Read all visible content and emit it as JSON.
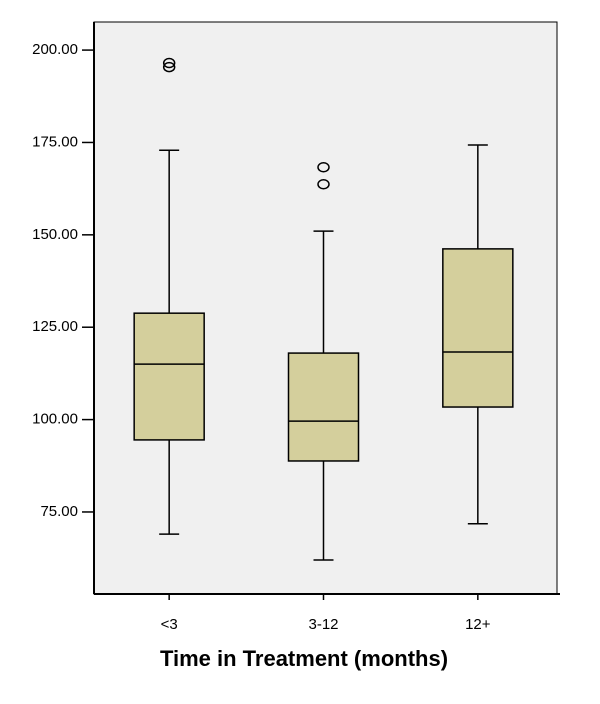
{
  "chart_data": {
    "type": "box",
    "x_label": "Time in Treatment (months)",
    "categories": [
      "<3",
      "3-12",
      "12+"
    ],
    "boxes": [
      {
        "min": 69.0,
        "q1": 94.5,
        "median": 115.0,
        "q3": 128.8,
        "max": 172.9,
        "outliers": [
          196.5,
          195.4
        ]
      },
      {
        "min": 62.0,
        "q1": 88.8,
        "median": 99.6,
        "q3": 118.0,
        "max": 151.0,
        "outliers": [
          168.3,
          163.7
        ]
      },
      {
        "min": 71.8,
        "q1": 103.4,
        "median": 118.3,
        "q3": 146.2,
        "max": 174.3,
        "outliers": []
      }
    ],
    "box_color": "#d4cf9c",
    "background": "#f0f0f0",
    "ylim": [
      52.8,
      207.6
    ],
    "yticks": [
      {
        "value": 75,
        "label": "75.00"
      },
      {
        "value": 100,
        "label": "100.00"
      },
      {
        "value": 125,
        "label": "125.00"
      },
      {
        "value": 150,
        "label": "150.00"
      },
      {
        "value": 175,
        "label": "175.00"
      },
      {
        "value": 200,
        "label": "200.00"
      }
    ]
  }
}
